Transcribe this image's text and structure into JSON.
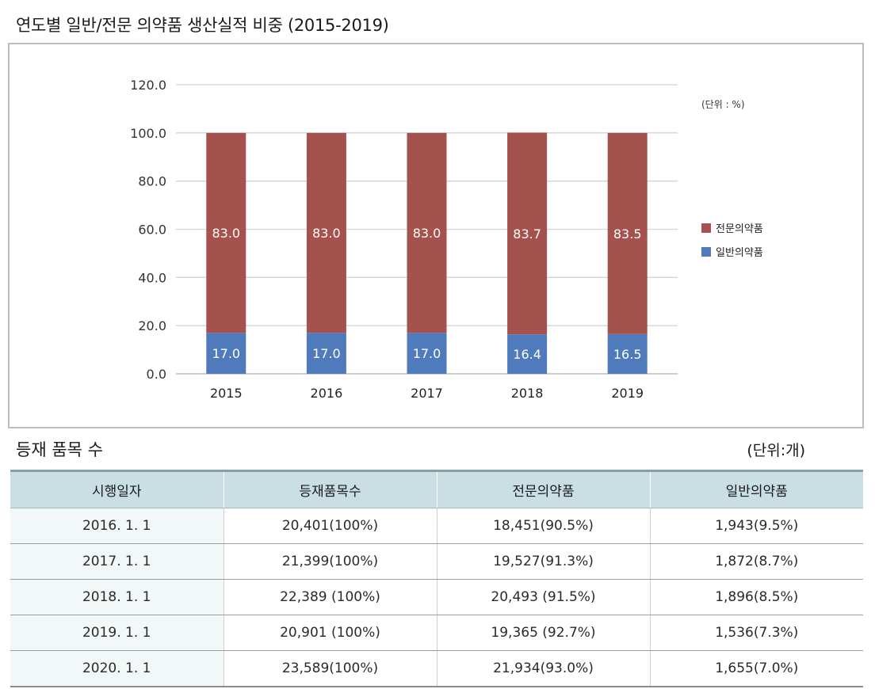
{
  "title": "연도별 일반/전문 의약품 생산실적 비중 (2015-2019)",
  "chart_data": {
    "type": "bar",
    "stacked": true,
    "categories": [
      "2015",
      "2016",
      "2017",
      "2018",
      "2019"
    ],
    "series": [
      {
        "name": "일반의약품",
        "values": [
          17.0,
          17.0,
          17.0,
          16.4,
          16.5
        ],
        "labels": [
          "17.0",
          "17.0",
          "17.0",
          "16.4",
          "16.5"
        ],
        "color": "#4f7bbd"
      },
      {
        "name": "전문의약품",
        "values": [
          83.0,
          83.0,
          83.0,
          83.7,
          83.5
        ],
        "labels": [
          "83.0",
          "83.0",
          "83.0",
          "83.7",
          "83.5"
        ],
        "color": "#a5514e"
      }
    ],
    "ylim": [
      0,
      120
    ],
    "yticks": [
      "0.0",
      "20.0",
      "40.0",
      "60.0",
      "80.0",
      "100.0",
      "120.0"
    ],
    "unit_note": "(단위 : %)",
    "legend": [
      {
        "label": "전문의약품",
        "color": "#a5514e"
      },
      {
        "label": "일반의약품",
        "color": "#4f7bbd"
      }
    ],
    "legend_position": "right",
    "grid": true
  },
  "table": {
    "title": "등재 품목 수",
    "unit": "(단위:개)",
    "headers": [
      "시행일자",
      "등재품목수",
      "전문의약품",
      "일반의약품"
    ],
    "rows": [
      [
        "2016. 1. 1",
        "20,401(100%)",
        "18,451(90.5%)",
        "1,943(9.5%)"
      ],
      [
        "2017. 1. 1",
        "21,399(100%)",
        "19,527(91.3%)",
        "1,872(8.7%)"
      ],
      [
        "2018. 1. 1",
        "22,389 (100%)",
        "20,493 (91.5%)",
        "1,896(8.5%)"
      ],
      [
        "2019. 1. 1",
        "20,901 (100%)",
        "19,365 (92.7%)",
        "1,536(7.3%)"
      ],
      [
        "2020. 1. 1",
        "23,589(100%)",
        "21,934(93.0%)",
        "1,655(7.0%)"
      ]
    ]
  }
}
